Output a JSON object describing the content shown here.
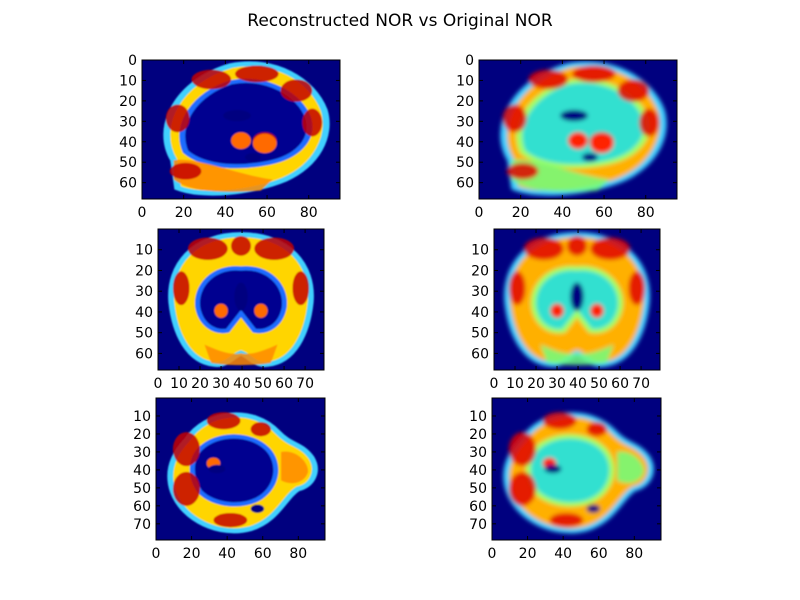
{
  "figure": {
    "title": "Reconstructed NOR vs Original NOR"
  },
  "colors": {
    "background": "#ffffff",
    "colormap": "jet",
    "axes_edge": "#000000"
  },
  "chart_data": [
    {
      "type": "heatmap",
      "title": "",
      "panel": "reconstructed",
      "view": "sagittal",
      "colormap": "jet",
      "xlim": [
        0,
        95
      ],
      "ylim": [
        0,
        68
      ],
      "y_inverted": true,
      "xticks": [
        0,
        20,
        40,
        60,
        80
      ],
      "yticks": [
        0,
        10,
        20,
        30,
        40,
        50,
        60
      ],
      "grid": false
    },
    {
      "type": "heatmap",
      "title": "",
      "panel": "original",
      "view": "sagittal",
      "colormap": "jet",
      "xlim": [
        0,
        95
      ],
      "ylim": [
        0,
        68
      ],
      "y_inverted": true,
      "xticks": [
        0,
        20,
        40,
        60,
        80
      ],
      "yticks": [
        0,
        10,
        20,
        30,
        40,
        50,
        60
      ],
      "grid": false
    },
    {
      "type": "heatmap",
      "title": "",
      "panel": "reconstructed",
      "view": "coronal",
      "colormap": "jet",
      "xlim": [
        0,
        79
      ],
      "ylim": [
        0,
        68
      ],
      "y_inverted": true,
      "xticks": [
        0,
        10,
        20,
        30,
        40,
        50,
        60,
        70
      ],
      "yticks": [
        10,
        20,
        30,
        40,
        50,
        60
      ],
      "grid": false
    },
    {
      "type": "heatmap",
      "title": "",
      "panel": "original",
      "view": "coronal",
      "colormap": "jet",
      "xlim": [
        0,
        79
      ],
      "ylim": [
        0,
        68
      ],
      "y_inverted": true,
      "xticks": [
        0,
        10,
        20,
        30,
        40,
        50,
        60,
        70
      ],
      "yticks": [
        10,
        20,
        30,
        40,
        50,
        60
      ],
      "grid": false
    },
    {
      "type": "heatmap",
      "title": "",
      "panel": "reconstructed",
      "view": "axial",
      "colormap": "jet",
      "xlim": [
        0,
        95
      ],
      "ylim": [
        0,
        79
      ],
      "y_inverted": true,
      "xticks": [
        0,
        20,
        40,
        60,
        80
      ],
      "yticks": [
        10,
        20,
        30,
        40,
        50,
        60,
        70
      ],
      "grid": false
    },
    {
      "type": "heatmap",
      "title": "",
      "panel": "original",
      "view": "axial",
      "colormap": "jet",
      "xlim": [
        0,
        95
      ],
      "ylim": [
        0,
        79
      ],
      "y_inverted": true,
      "xticks": [
        0,
        20,
        40,
        60,
        80
      ],
      "yticks": [
        10,
        20,
        30,
        40,
        50,
        60,
        70
      ],
      "grid": false
    }
  ]
}
